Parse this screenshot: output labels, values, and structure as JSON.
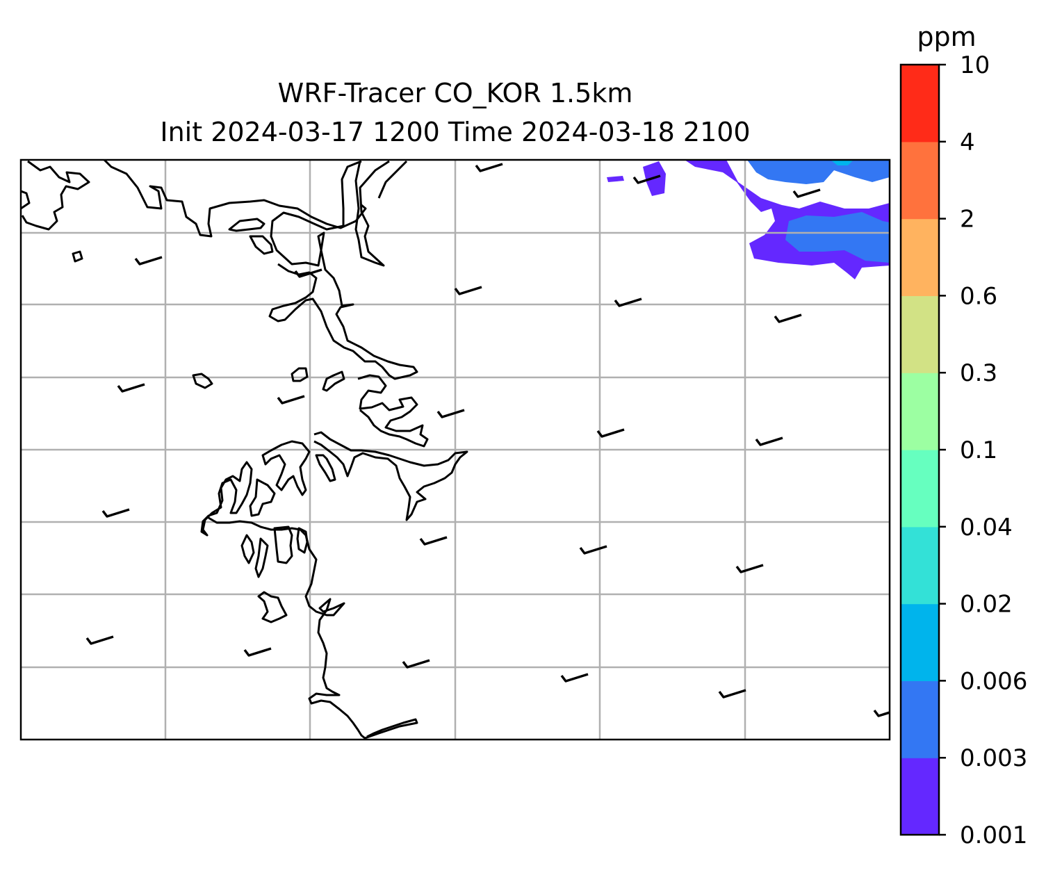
{
  "title": {
    "line1": "WRF-Tracer CO_KOR 1.5km",
    "line2": "Init 2024-03-17 1200 Time 2024-03-18 2100"
  },
  "colorbar": {
    "unit": "ppm",
    "levels": [
      "0.001",
      "0.003",
      "0.006",
      "0.02",
      "0.04",
      "0.1",
      "0.3",
      "0.6",
      "2",
      "4",
      "10"
    ],
    "colors": [
      "#6428ff",
      "#3377f3",
      "#00b4ec",
      "#33e1d7",
      "#66ffbf",
      "#9cffa2",
      "#d2e285",
      "#ffb35f",
      "#ff723d",
      "#ff2b18"
    ]
  },
  "map": {
    "gridlines": true,
    "gridline_color": "#b0b0b0",
    "coastline_color": "#000000",
    "field_colors_present": [
      "#6428ff",
      "#3377f3",
      "#00b4ec"
    ]
  },
  "wind_barbs": {
    "symbol": "barb",
    "count": 24,
    "color": "#000000"
  }
}
